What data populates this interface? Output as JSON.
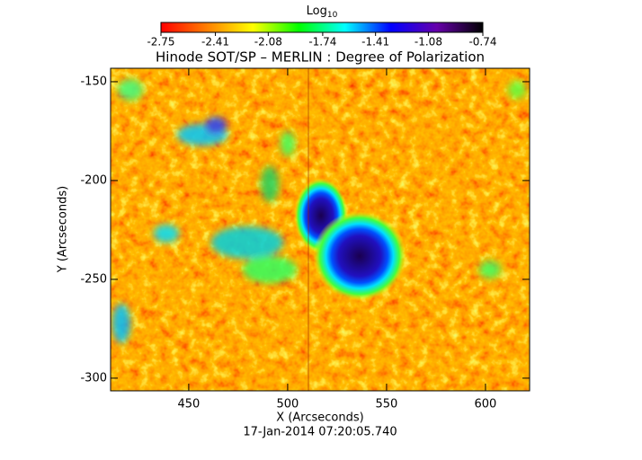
{
  "chart_data": {
    "type": "image",
    "title": "Hinode SOT/SP – MERLIN : Degree of Polarization",
    "subtitle": "17-Jan-2014 07:20:05.740",
    "x_label": "X (Arcseconds)",
    "y_label": "Y (Arcseconds)",
    "xlim": [
      410.5,
      622.3
    ],
    "xticks": [
      450,
      500,
      550,
      600
    ],
    "ylim": [
      -306.4,
      -143.2
    ],
    "yticks": [
      -150,
      -200,
      -250,
      -300
    ],
    "colorbar": {
      "label": "Log",
      "label_sub": "10",
      "lim": [
        -2.75,
        -0.74
      ],
      "ticks": [
        -2.75,
        -2.41,
        -2.08,
        -1.74,
        -1.41,
        -1.08,
        -0.74
      ],
      "colormap": [
        "#ff0000",
        "#ff7f00",
        "#ffff00",
        "#00ff00",
        "#00ffff",
        "#0000ff",
        "#6600aa",
        "#000000"
      ]
    }
  }
}
